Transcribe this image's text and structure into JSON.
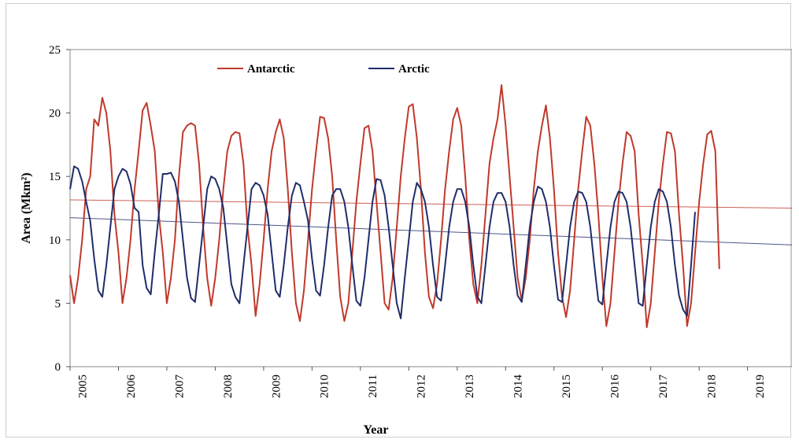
{
  "chart_data": {
    "type": "line",
    "title": "",
    "xlabel": "Year",
    "ylabel": "Area (Mkm²)",
    "ylim": [
      0,
      25
    ],
    "yticks": [
      0,
      5,
      10,
      15,
      20,
      25
    ],
    "xlim": [
      2005,
      2019.9167
    ],
    "xtick_labels": [
      "2005",
      "2006",
      "2007",
      "2008",
      "2009",
      "2010",
      "2011",
      "2012",
      "2013",
      "2014",
      "2015",
      "2016",
      "2017",
      "2018",
      "2019"
    ],
    "grid": false,
    "legend_position": "top",
    "series": [
      {
        "name": "Antarctic",
        "color": "#c0392b",
        "x_start_year": 2005,
        "x_step_months": 1,
        "values": [
          7.2,
          5.0,
          7.0,
          10.0,
          14.0,
          15.0,
          19.5,
          19.0,
          21.2,
          20.0,
          17.0,
          12.0,
          9.0,
          5.0,
          7.0,
          10.0,
          14.0,
          17.0,
          20.2,
          20.8,
          19.0,
          17.0,
          12.0,
          9.0,
          5.0,
          7.0,
          10.0,
          15.0,
          18.5,
          19.0,
          19.2,
          19.0,
          16.0,
          11.0,
          7.0,
          4.8,
          7.0,
          10.0,
          14.0,
          17.0,
          18.2,
          18.5,
          18.4,
          16.0,
          11.0,
          8.0,
          4.0,
          6.5,
          10.0,
          14.0,
          17.0,
          18.5,
          19.5,
          18.0,
          14.0,
          9.0,
          5.0,
          3.6,
          6.0,
          10.0,
          14.0,
          17.0,
          19.7,
          19.6,
          18.0,
          15.0,
          10.0,
          5.5,
          3.6,
          5.0,
          9.0,
          13.0,
          16.0,
          18.8,
          19.0,
          17.0,
          13.0,
          9.0,
          5.0,
          4.5,
          7.0,
          11.0,
          15.0,
          18.0,
          20.5,
          20.7,
          18.0,
          14.0,
          9.0,
          5.5,
          4.6,
          6.5,
          10.0,
          14.0,
          17.0,
          19.5,
          20.4,
          19.0,
          15.0,
          10.0,
          6.5,
          5.0,
          8.0,
          12.0,
          16.0,
          18.0,
          19.5,
          22.2,
          19.0,
          15.0,
          11.0,
          7.0,
          5.2,
          7.0,
          10.0,
          14.0,
          17.0,
          19.0,
          20.6,
          18.0,
          14.0,
          9.0,
          5.5,
          3.9,
          6.0,
          10.0,
          14.0,
          17.0,
          19.7,
          19.0,
          16.0,
          12.0,
          7.0,
          3.2,
          5.0,
          9.0,
          13.0,
          16.0,
          18.5,
          18.2,
          17.0,
          12.0,
          8.0,
          3.1,
          5.0,
          9.0,
          13.0,
          16.0,
          18.5,
          18.4,
          17.0,
          12.0,
          8.0,
          3.2,
          5.0,
          9.0,
          13.0,
          16.0,
          18.3,
          18.6,
          17.0,
          7.7
        ]
      },
      {
        "name": "Arctic",
        "color": "#1f2d6b",
        "x_start_year": 2005,
        "x_step_months": 1,
        "values": [
          14.0,
          15.8,
          15.6,
          14.6,
          13.0,
          11.5,
          8.5,
          6.0,
          5.5,
          8.0,
          11.0,
          14.0,
          15.0,
          15.6,
          15.4,
          14.4,
          12.5,
          12.2,
          8.0,
          6.2,
          5.7,
          9.0,
          12.0,
          15.2,
          15.2,
          15.3,
          14.6,
          13.0,
          10.0,
          7.0,
          5.4,
          5.1,
          8.0,
          11.0,
          14.0,
          15.0,
          14.8,
          14.0,
          12.5,
          9.5,
          6.5,
          5.5,
          5.0,
          8.0,
          11.0,
          14.0,
          14.5,
          14.3,
          13.5,
          12.0,
          9.0,
          6.0,
          5.5,
          8.0,
          11.0,
          13.5,
          14.5,
          14.3,
          13.0,
          11.5,
          8.5,
          6.0,
          5.6,
          8.0,
          11.0,
          13.5,
          14.0,
          14.0,
          13.0,
          11.0,
          8.0,
          5.2,
          4.8,
          7.0,
          10.0,
          13.0,
          14.8,
          14.7,
          13.5,
          11.0,
          8.0,
          5.0,
          3.8,
          7.0,
          10.0,
          13.0,
          14.5,
          14.0,
          13.0,
          11.0,
          8.0,
          5.5,
          5.2,
          8.0,
          11.0,
          13.0,
          14.0,
          14.0,
          13.0,
          11.0,
          8.0,
          5.5,
          5.0,
          8.0,
          11.0,
          13.0,
          13.7,
          13.7,
          13.0,
          11.0,
          8.0,
          5.6,
          5.1,
          8.0,
          11.0,
          13.0,
          14.2,
          14.0,
          13.0,
          11.0,
          8.0,
          5.3,
          5.1,
          8.0,
          11.0,
          13.0,
          13.8,
          13.7,
          13.0,
          11.0,
          8.0,
          5.2,
          4.9,
          8.0,
          11.0,
          13.0,
          13.8,
          13.7,
          13.0,
          11.0,
          8.0,
          5.0,
          4.8,
          8.0,
          11.0,
          13.0,
          14.0,
          13.8,
          13.0,
          11.0,
          8.0,
          5.6,
          4.5,
          4.0,
          8.0,
          12.2
        ]
      }
    ],
    "trendlines": [
      {
        "series": "Antarctic",
        "color": "#c0392b",
        "start": [
          2005,
          13.15
        ],
        "end": [
          2019.9167,
          12.5
        ]
      },
      {
        "series": "Arctic",
        "color": "#1f2d6b",
        "start": [
          2005,
          11.75
        ],
        "end": [
          2019.9167,
          9.6
        ]
      }
    ]
  }
}
